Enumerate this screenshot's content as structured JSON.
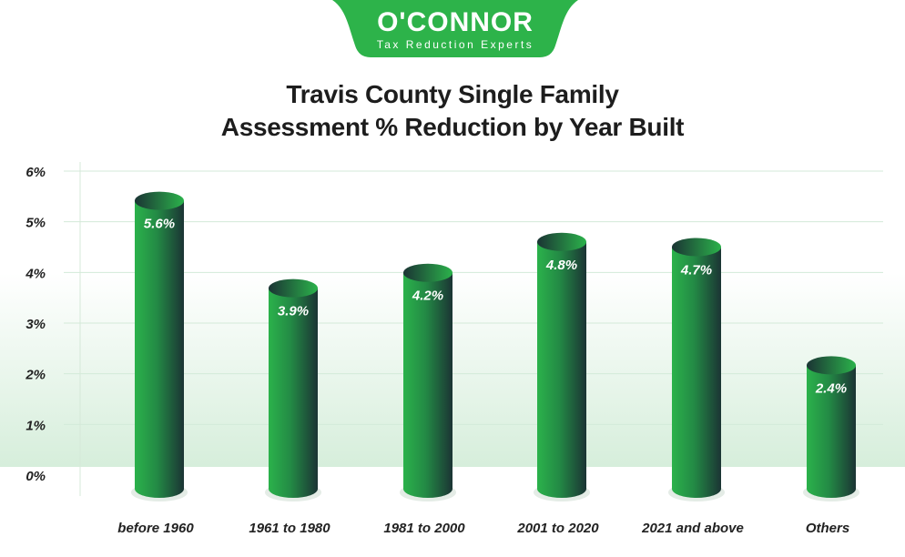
{
  "logo": {
    "brand": "O'CONNOR",
    "tagline": "Tax Reduction Experts",
    "color": "#2db34a"
  },
  "chart_data": {
    "type": "bar",
    "title_line1": "Travis County Single Family",
    "title_line2": "Assessment % Reduction by Year Built",
    "categories": [
      "before 1960",
      "1961 to 1980",
      "1981 to 2000",
      "2001 to 2020",
      "2021 and above",
      "Others"
    ],
    "values": [
      5.6,
      3.9,
      4.2,
      4.8,
      4.7,
      2.4
    ],
    "data_labels": [
      "5.6%",
      "3.9%",
      "4.2%",
      "4.8%",
      "4.7%",
      "2.4%"
    ],
    "yticks": [
      "0%",
      "1%",
      "2%",
      "3%",
      "4%",
      "5%",
      "6%"
    ],
    "ylim": [
      0,
      6
    ],
    "grid": true,
    "bar_style": "3d-cylinder",
    "colors": {
      "bar_light": "#2bb24b",
      "bar_dark": "#1b3434"
    }
  }
}
